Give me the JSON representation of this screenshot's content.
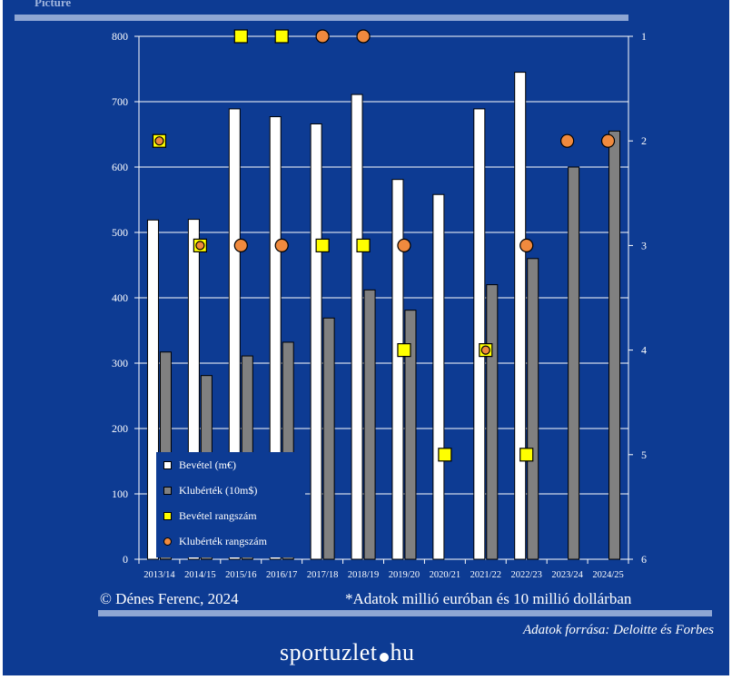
{
  "header": {
    "label": "Picture"
  },
  "colors": {
    "background": "#0d3b93",
    "revenue_bar": "#ffffff",
    "value_bar": "#808080",
    "revenue_rank": "#ffff00",
    "value_rank": "#f08a3e",
    "rule": "#8ea6d3"
  },
  "chart_data": {
    "type": "bar",
    "categories": [
      "2013/14",
      "2014/15",
      "2015/16",
      "2016/17",
      "2017/18",
      "2018/19",
      "2019/20",
      "2020/21",
      "2021/22",
      "2022/23",
      "2023/24",
      "2024/25"
    ],
    "series": [
      {
        "name": "Bevétel (m€)",
        "type": "bar",
        "axis": "left",
        "values": [
          519,
          520,
          689,
          677,
          666,
          711,
          581,
          558,
          689,
          745,
          null,
          null
        ]
      },
      {
        "name": "Klubérték (10m$)",
        "type": "bar",
        "axis": "left",
        "values": [
          317,
          281,
          311,
          332,
          369,
          412,
          381,
          null,
          420,
          460,
          600,
          655
        ]
      },
      {
        "name": "Bevétel rangszám",
        "type": "scatter",
        "marker": "square",
        "axis": "right",
        "values": [
          2,
          3,
          1,
          1,
          3,
          3,
          4,
          5,
          4,
          5,
          null,
          null
        ]
      },
      {
        "name": "Klubérték rangszám",
        "type": "scatter",
        "marker": "circle",
        "axis": "right",
        "values": [
          2,
          3,
          3,
          3,
          1,
          1,
          3,
          null,
          4,
          3,
          2,
          2
        ]
      }
    ],
    "yticks_left": [
      "0",
      "100",
      "200",
      "300",
      "400",
      "500",
      "600",
      "700",
      "800"
    ],
    "yticks_right": [
      "1",
      "2",
      "3",
      "4",
      "5",
      "6"
    ],
    "ylim_left": [
      0,
      800
    ],
    "ylim_right_reversed": [
      1,
      6
    ],
    "grid": true,
    "legend_position": "bottom-left"
  },
  "footer": {
    "copyright": "© Dénes Ferenc, 2024",
    "note": "*Adatok millió euróban és 10 millió dollárban",
    "source": "Adatok forrása: Deloitte és Forbes",
    "brand_left": "sportuzlet",
    "brand_right": "hu"
  }
}
